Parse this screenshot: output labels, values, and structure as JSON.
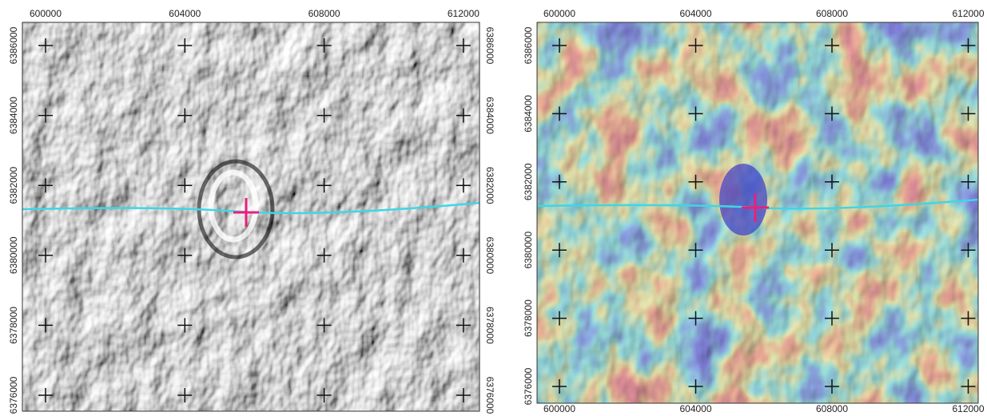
{
  "panels": [
    {
      "top_ticks": [
        "600000",
        "604000",
        "608000",
        "612000"
      ],
      "left_ticks": [
        "6386000",
        "6384000",
        "6382000",
        "6380000",
        "6378000",
        "6376000"
      ],
      "right_ticks": [
        "6386000",
        "6384000",
        "6382000",
        "6380000",
        "6378000",
        "6376000"
      ]
    },
    {
      "top_ticks": [
        "600000",
        "604000",
        "608000",
        "612000"
      ],
      "left_ticks": [
        "6386000",
        "6384000",
        "6382000",
        "6380000",
        "6378000",
        "6376000"
      ],
      "bottom_ticks": [
        "600000",
        "604000",
        "608000",
        "612000"
      ]
    }
  ]
}
